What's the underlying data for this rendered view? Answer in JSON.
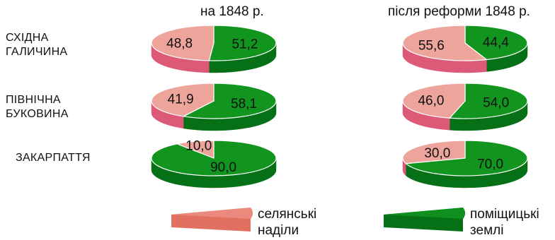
{
  "columns": [
    "на 1848 р.",
    "після реформи 1848 р."
  ],
  "rows": [
    "СХІДНА ГАЛИЧИНА",
    "ПІВНІЧНА БУКОВИНА",
    "ЗАКАРПАТТЯ"
  ],
  "row_label_lines": [
    [
      "СХІДНА",
      "ГАЛИЧИНА"
    ],
    [
      "ПІВНІЧНА",
      "БУКОВИНА"
    ],
    [
      "ЗАКАРПАТТЯ"
    ]
  ],
  "legend": [
    {
      "lines": [
        "селянські",
        "наділи"
      ],
      "top_color": "#e98a7c",
      "side_color": "#e27060"
    },
    {
      "lines": [
        "поміщицькі",
        "землі"
      ],
      "top_color": "#0e8f1e",
      "side_color": "#057015"
    }
  ],
  "chart_data": {
    "type": "pie",
    "series_names": [
      "селянські наділи",
      "поміщицькі землі"
    ],
    "colors": {
      "peasant_top": "#eda49b",
      "peasant_side": "#dc5a78",
      "landlord_top": "#11951f",
      "landlord_side": "#057015"
    },
    "charts": [
      {
        "row": "СХІДНА ГАЛИЧИНА",
        "column": "на 1848 р.",
        "values": [
          48.8,
          51.2
        ],
        "labels": [
          "48,8",
          "51,2"
        ]
      },
      {
        "row": "СХІДНА ГАЛИЧИНА",
        "column": "після реформи 1848 р.",
        "values": [
          55.6,
          44.4
        ],
        "labels": [
          "55,6",
          "44,4"
        ]
      },
      {
        "row": "ПІВНІЧНА БУКОВИНА",
        "column": "на 1848 р.",
        "values": [
          41.9,
          58.1
        ],
        "labels": [
          "41,9",
          "58,1"
        ]
      },
      {
        "row": "ПІВНІЧНА БУКОВИНА",
        "column": "після реформи 1848 р.",
        "values": [
          46.0,
          54.0
        ],
        "labels": [
          "46,0",
          "54,0"
        ]
      },
      {
        "row": "ЗАКАРПАТТЯ",
        "column": "на 1848 р.",
        "values": [
          10.0,
          90.0
        ],
        "labels": [
          "10,0",
          "90,0"
        ]
      },
      {
        "row": "ЗАКАРПАТТЯ",
        "column": "після реформи 1848 р.",
        "values": [
          30.0,
          70.0
        ],
        "labels": [
          "30,0",
          "70,0"
        ]
      }
    ]
  }
}
